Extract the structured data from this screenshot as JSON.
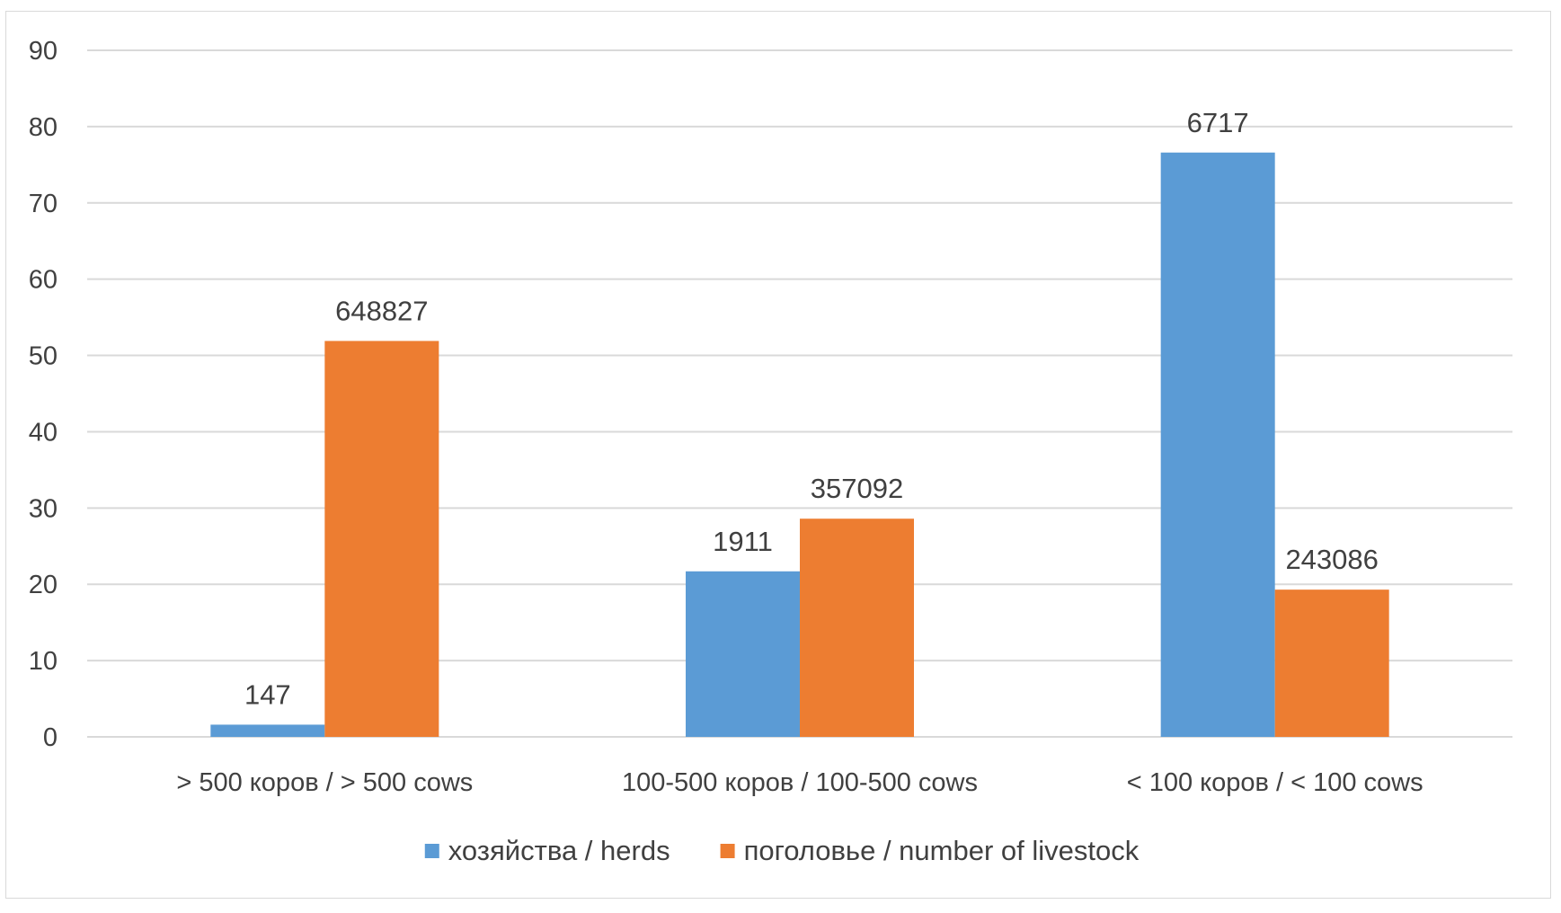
{
  "chart_data": {
    "type": "bar",
    "categories": [
      "> 500 коров / > 500 cows",
      "100-500 коров / 100-500 cows",
      "< 100 коров / < 100 cows"
    ],
    "series": [
      {
        "name": "хозяйства / herds",
        "color": "#5b9bd5",
        "values": [
          1.6,
          21.7,
          76.6
        ],
        "labels": [
          "147",
          "1911",
          "6717"
        ]
      },
      {
        "name": "поголовье / number of livestock",
        "color": "#ed7d31",
        "values": [
          51.9,
          28.6,
          19.3
        ],
        "labels": [
          "648827",
          "357092",
          "243086"
        ]
      }
    ],
    "ylim": [
      0,
      90
    ],
    "yticks": [
      "0",
      "10",
      "20",
      "30",
      "40",
      "50",
      "60",
      "70",
      "80",
      "90"
    ],
    "grid": true,
    "legend_position": "bottom"
  }
}
